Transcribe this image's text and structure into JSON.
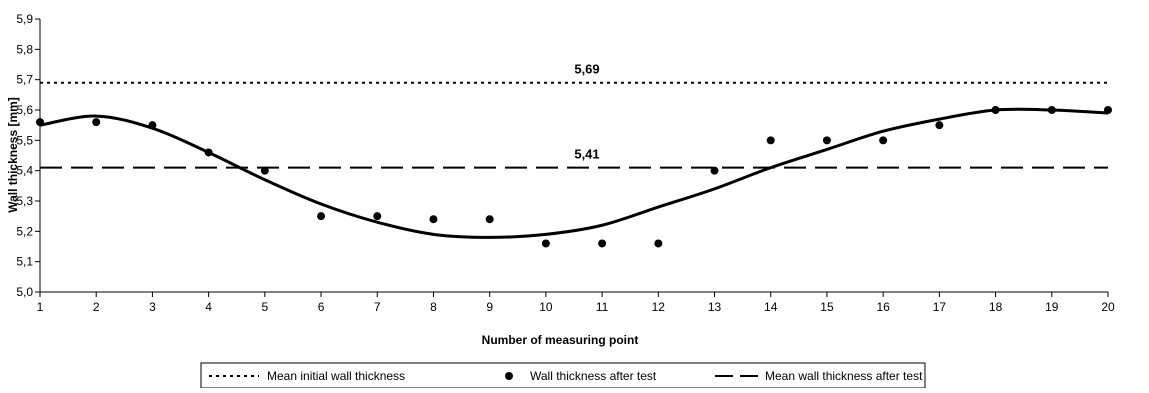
{
  "chart_data": {
    "type": "scatter",
    "xlabel": "Number of measuring point",
    "ylabel": "Wall thickness [mm]",
    "xlim": [
      1,
      20
    ],
    "ylim": [
      5.0,
      5.9
    ],
    "x_ticks": [
      "1",
      "2",
      "3",
      "4",
      "5",
      "6",
      "7",
      "8",
      "9",
      "10",
      "11",
      "12",
      "13",
      "14",
      "15",
      "16",
      "17",
      "18",
      "19",
      "20"
    ],
    "y_ticks": [
      "5,0",
      "5,1",
      "5,2",
      "5,3",
      "5,4",
      "5,5",
      "5,6",
      "5,7",
      "5,8",
      "5,9"
    ],
    "grid": false,
    "legend_placement": "bottom",
    "series": [
      {
        "name": "Mean initial wall thickness",
        "kind": "hline",
        "style": "dotted",
        "value": 5.69,
        "label": "5,69"
      },
      {
        "name": "Wall thickness after test",
        "kind": "points",
        "x": [
          1,
          2,
          3,
          4,
          5,
          6,
          7,
          8,
          9,
          10,
          11,
          12,
          13,
          14,
          15,
          16,
          17,
          18,
          19,
          20
        ],
        "values": [
          5.56,
          5.56,
          5.55,
          5.46,
          5.4,
          5.25,
          5.25,
          5.24,
          5.24,
          5.16,
          5.16,
          5.16,
          5.4,
          5.5,
          5.5,
          5.5,
          5.55,
          5.6,
          5.6,
          5.6
        ]
      },
      {
        "name": "Mean wall thickness after test",
        "kind": "hline",
        "style": "dashed",
        "value": 5.41,
        "label": "5,41"
      },
      {
        "kind": "trend",
        "style": "solid",
        "x": [
          1,
          2,
          3,
          4,
          5,
          6,
          7,
          8,
          9,
          10,
          11,
          12,
          13,
          14,
          15,
          16,
          17,
          18,
          19,
          20
        ],
        "values": [
          5.55,
          5.58,
          5.54,
          5.46,
          5.37,
          5.29,
          5.23,
          5.19,
          5.18,
          5.19,
          5.22,
          5.28,
          5.34,
          5.41,
          5.47,
          5.53,
          5.57,
          5.6,
          5.6,
          5.59
        ]
      }
    ]
  }
}
